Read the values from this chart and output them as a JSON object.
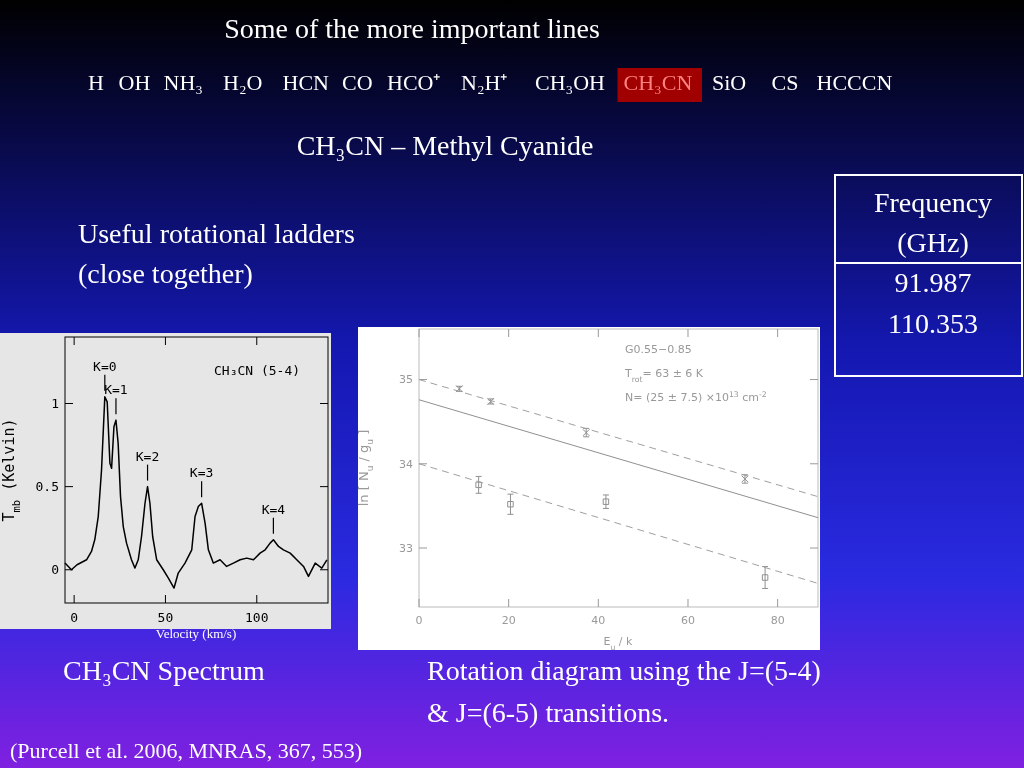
{
  "chart_data": [
    {
      "type": "other",
      "title": "Some of the more important lines",
      "subtitle": "CH₃CN – Methyl Cyanide",
      "categories": [
        "H",
        "OH",
        "NH₃",
        "H₂O",
        "HCN",
        "CO",
        "HCO⁺",
        "N₂H⁺",
        "CH₃OH",
        "CH₃CN",
        "SiO",
        "CS",
        "HCCCN"
      ],
      "colors": [
        null,
        null,
        null,
        null,
        null,
        null,
        null,
        null,
        null,
        "#a00000",
        null,
        null,
        null
      ],
      "annotations": [
        "Useful rotational ladders",
        "(close together)",
        "Frequency",
        "(GHz)",
        "91.987",
        "110.353",
        "CH₃CN Spectrum",
        "Rotation diagram using the J=(5-4)",
        "& J=(6-5) transitions.",
        "(Purcell et al. 2006, MNRAS, 367, 553)"
      ]
    },
    {
      "type": "line",
      "xlabel": "Velocity (km/s)",
      "ylabel": "T$_{mb}$ (Kelvin)",
      "xlim": [
        -5,
        139
      ],
      "ylim": [
        -0.2,
        1.4
      ],
      "xticks": [
        0,
        50,
        100
      ],
      "yticks": [
        0,
        0.5,
        1
      ],
      "x": [
        -5,
        -1.5,
        1.6,
        6.8,
        9.5,
        11.3,
        13.2,
        15,
        16.8,
        18.1,
        19.6,
        20.5,
        21.8,
        22.9,
        24.1,
        25.4,
        26.9,
        28.7,
        31.4,
        33.3,
        35.1,
        36.9,
        38.8,
        40.2,
        41.5,
        43,
        45.2,
        48.8,
        51.6,
        54.7,
        57,
        60.7,
        64.4,
        66.2,
        68,
        69.8,
        71.7,
        73.5,
        76.2,
        79.9,
        83.5,
        87.2,
        90.9,
        94.5,
        98.2,
        101.8,
        104.6,
        107.3,
        109.1,
        111.9,
        114.6,
        118.3,
        121.9,
        125.6,
        128.3,
        132,
        135.6,
        138.4
      ],
      "series": [
        {
          "color": "#000000",
          "values": [
            0.04,
            0,
            0.03,
            0.06,
            0.11,
            0.18,
            0.32,
            0.6,
            1.04,
            1.01,
            0.64,
            0.61,
            0.86,
            0.9,
            0.76,
            0.44,
            0.26,
            0.16,
            0.06,
            0.01,
            0.06,
            0.2,
            0.4,
            0.5,
            0.4,
            0.2,
            0.06,
            0,
            -0.05,
            -0.11,
            -0.02,
            0.04,
            0.12,
            0.32,
            0.38,
            0.4,
            0.28,
            0.12,
            0.04,
            0.06,
            0.02,
            0.04,
            0.06,
            0.07,
            0.06,
            0.1,
            0.12,
            0.16,
            0.18,
            0.14,
            0.12,
            0.1,
            0.06,
            0.02,
            -0.04,
            0.04,
            0.01,
            0.06
          ]
        }
      ],
      "annotations": [
        {
          "text": "K=0",
          "x": 16.8,
          "y": 1.04
        },
        {
          "text": "K=1",
          "x": 22.9,
          "y": 0.9
        },
        {
          "text": "K=2",
          "x": 40.2,
          "y": 0.5
        },
        {
          "text": "K=3",
          "x": 69.8,
          "y": 0.4
        },
        {
          "text": "K=4",
          "x": 109.1,
          "y": 0.18
        },
        "CH₃CN (5-4)"
      ]
    },
    {
      "type": "scatter",
      "xlabel": "E$_{u}$ / k",
      "ylabel": "ln [ N$_{u}$ / g$_{u}$ ]",
      "xlim": [
        0,
        89
      ],
      "ylim": [
        32.3,
        35.6
      ],
      "xticks": [
        0,
        20,
        40,
        60,
        80
      ],
      "yticks": [
        33,
        34,
        35
      ],
      "series": [
        {
          "type": "scatter",
          "marker": "cross",
          "color": "#909090",
          "x": [
            9,
            16,
            37.3,
            72.7
          ],
          "values": [
            34.89,
            34.74,
            34.37,
            33.82
          ],
          "errors": [
            0.03,
            0.03,
            0.05,
            0.05
          ]
        },
        {
          "type": "scatter",
          "marker": "square",
          "color": "#909090",
          "x": [
            13.3,
            20.4,
            41.7,
            77.2
          ],
          "values": [
            33.75,
            33.52,
            33.55,
            32.65
          ],
          "errors": [
            0.1,
            0.12,
            0.08,
            0.13
          ]
        },
        {
          "type": "line",
          "line_style": "dashed",
          "color": "#a0a0a0",
          "x": [
            0,
            89
          ],
          "values": [
            35,
            33.61
          ]
        },
        {
          "type": "line",
          "line_style": "dashed",
          "color": "#a0a0a0",
          "x": [
            0,
            89
          ],
          "values": [
            34,
            32.58
          ]
        },
        {
          "type": "line",
          "line_style": "solid",
          "color": "#909090",
          "x": [
            0,
            89
          ],
          "values": [
            34.76,
            33.36
          ]
        }
      ],
      "annotations": [
        "G0.55−0.85",
        "T$_{rot}$= 63 ± 6 K",
        "N= (25 ± 7.5) ×10$^{13}$ cm$^{-2}$"
      ]
    }
  ]
}
